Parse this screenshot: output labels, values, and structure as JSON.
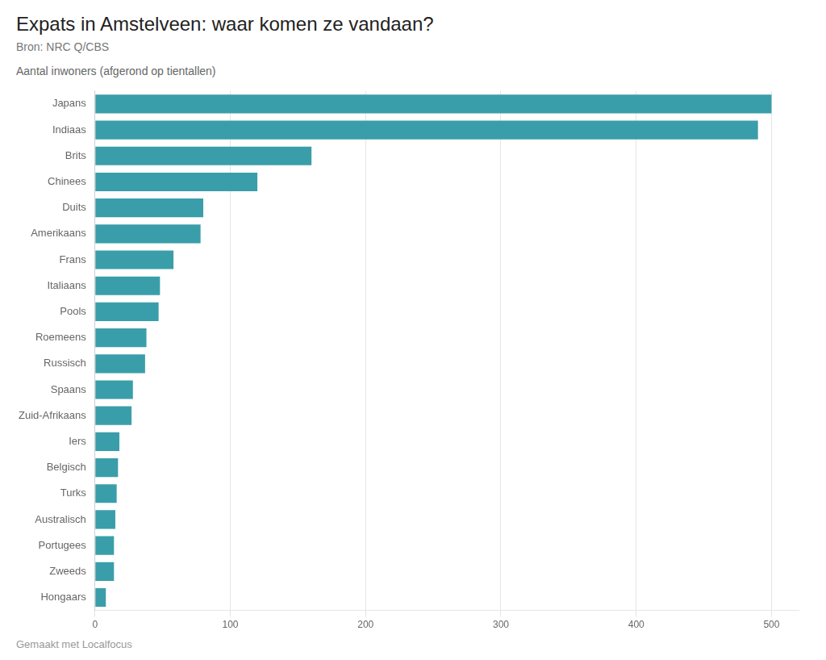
{
  "chart_data": {
    "type": "bar",
    "orientation": "horizontal",
    "title": "Expats in Amstelveen: waar komen ze vandaan?",
    "subtitle": "Bron: NRC Q/CBS",
    "ylabel": "Aantal inwoners (afgerond op tientallen)",
    "annotations": [
      "Gemaakt met Localfocus"
    ],
    "categories": [
      "Japans",
      "Indiaas",
      "Brits",
      "Chinees",
      "Duits",
      "Amerikaans",
      "Frans",
      "Italiaans",
      "Pools",
      "Roemeens",
      "Russisch",
      "Spaans",
      "Zuid-Afrikaans",
      "Iers",
      "Belgisch",
      "Turks",
      "Australisch",
      "Portugees",
      "Zweeds",
      "Hongaars"
    ],
    "values": [
      500,
      490,
      160,
      120,
      80,
      78,
      58,
      48,
      47,
      38,
      37,
      28,
      27,
      18,
      17,
      16,
      15,
      14,
      14,
      8
    ],
    "color": "#3a9eaa",
    "xlim": [
      0,
      520
    ],
    "xticks": [
      0,
      100,
      200,
      300,
      400,
      500
    ],
    "grid": true
  }
}
